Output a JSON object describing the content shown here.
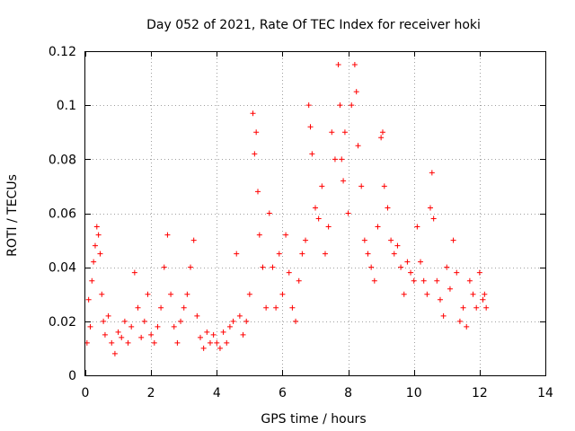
{
  "chart_data": {
    "type": "scatter",
    "title": "Day 052 of 2021, Rate Of TEC Index for receiver hoki",
    "xlabel": "GPS time / hours",
    "ylabel": "ROTI / TECUs",
    "xlim": [
      0,
      14
    ],
    "ylim": [
      0,
      0.12
    ],
    "xticks": [
      0,
      2,
      4,
      6,
      8,
      10,
      12,
      14
    ],
    "xtick_labels": [
      "0",
      "2",
      "4",
      "6",
      "8",
      "10",
      "12",
      "14"
    ],
    "yticks": [
      0,
      0.02,
      0.04,
      0.06,
      0.08,
      0.1,
      0.12
    ],
    "ytick_labels": [
      "0",
      "0.02",
      "0.04",
      "0.06",
      "0.08",
      "0.1",
      "0.12"
    ],
    "grid": true,
    "marker": "+",
    "color": "#ff0000",
    "series": [
      {
        "name": "ROTI",
        "x": [
          0.05,
          0.1,
          0.15,
          0.2,
          0.25,
          0.3,
          0.35,
          0.4,
          0.45,
          0.5,
          0.55,
          0.6,
          0.7,
          0.8,
          0.9,
          1.0,
          1.1,
          1.2,
          1.3,
          1.4,
          1.5,
          1.6,
          1.7,
          1.8,
          1.9,
          2.0,
          2.1,
          2.2,
          2.3,
          2.4,
          2.5,
          2.6,
          2.7,
          2.8,
          2.9,
          3.0,
          3.1,
          3.2,
          3.3,
          3.4,
          3.5,
          3.6,
          3.7,
          3.8,
          3.9,
          4.0,
          4.1,
          4.2,
          4.3,
          4.4,
          4.5,
          4.6,
          4.7,
          4.8,
          4.9,
          5.0,
          5.1,
          5.15,
          5.2,
          5.25,
          5.3,
          5.4,
          5.5,
          5.6,
          5.7,
          5.8,
          5.9,
          6.0,
          6.1,
          6.2,
          6.3,
          6.4,
          6.5,
          6.6,
          6.7,
          6.8,
          6.85,
          6.9,
          7.0,
          7.1,
          7.2,
          7.3,
          7.4,
          7.5,
          7.6,
          7.7,
          7.75,
          7.8,
          7.85,
          7.9,
          8.0,
          8.1,
          8.2,
          8.25,
          8.3,
          8.4,
          8.5,
          8.6,
          8.7,
          8.8,
          8.9,
          9.0,
          9.05,
          9.1,
          9.2,
          9.3,
          9.4,
          9.5,
          9.6,
          9.7,
          9.8,
          9.9,
          10.0,
          10.1,
          10.2,
          10.3,
          10.4,
          10.5,
          10.55,
          10.6,
          10.7,
          10.8,
          10.9,
          11.0,
          11.1,
          11.2,
          11.3,
          11.4,
          11.5,
          11.6,
          11.7,
          11.8,
          11.9,
          12.0,
          12.1,
          12.15,
          12.2
        ],
        "y": [
          0.012,
          0.028,
          0.018,
          0.035,
          0.042,
          0.048,
          0.055,
          0.052,
          0.045,
          0.03,
          0.02,
          0.015,
          0.022,
          0.012,
          0.008,
          0.016,
          0.014,
          0.02,
          0.012,
          0.018,
          0.038,
          0.025,
          0.014,
          0.02,
          0.03,
          0.015,
          0.012,
          0.018,
          0.025,
          0.04,
          0.052,
          0.03,
          0.018,
          0.012,
          0.02,
          0.025,
          0.03,
          0.04,
          0.05,
          0.022,
          0.014,
          0.01,
          0.016,
          0.012,
          0.015,
          0.012,
          0.01,
          0.016,
          0.012,
          0.018,
          0.02,
          0.045,
          0.022,
          0.015,
          0.02,
          0.03,
          0.097,
          0.082,
          0.09,
          0.068,
          0.052,
          0.04,
          0.025,
          0.06,
          0.04,
          0.025,
          0.045,
          0.03,
          0.052,
          0.038,
          0.025,
          0.02,
          0.035,
          0.045,
          0.05,
          0.1,
          0.092,
          0.082,
          0.062,
          0.058,
          0.07,
          0.045,
          0.055,
          0.09,
          0.08,
          0.115,
          0.1,
          0.08,
          0.072,
          0.09,
          0.06,
          0.1,
          0.115,
          0.105,
          0.085,
          0.07,
          0.05,
          0.045,
          0.04,
          0.035,
          0.055,
          0.088,
          0.09,
          0.07,
          0.062,
          0.05,
          0.045,
          0.048,
          0.04,
          0.03,
          0.042,
          0.038,
          0.035,
          0.055,
          0.042,
          0.035,
          0.03,
          0.062,
          0.075,
          0.058,
          0.035,
          0.028,
          0.022,
          0.04,
          0.032,
          0.05,
          0.038,
          0.02,
          0.025,
          0.018,
          0.035,
          0.03,
          0.025,
          0.038,
          0.028,
          0.03,
          0.025
        ]
      }
    ]
  }
}
